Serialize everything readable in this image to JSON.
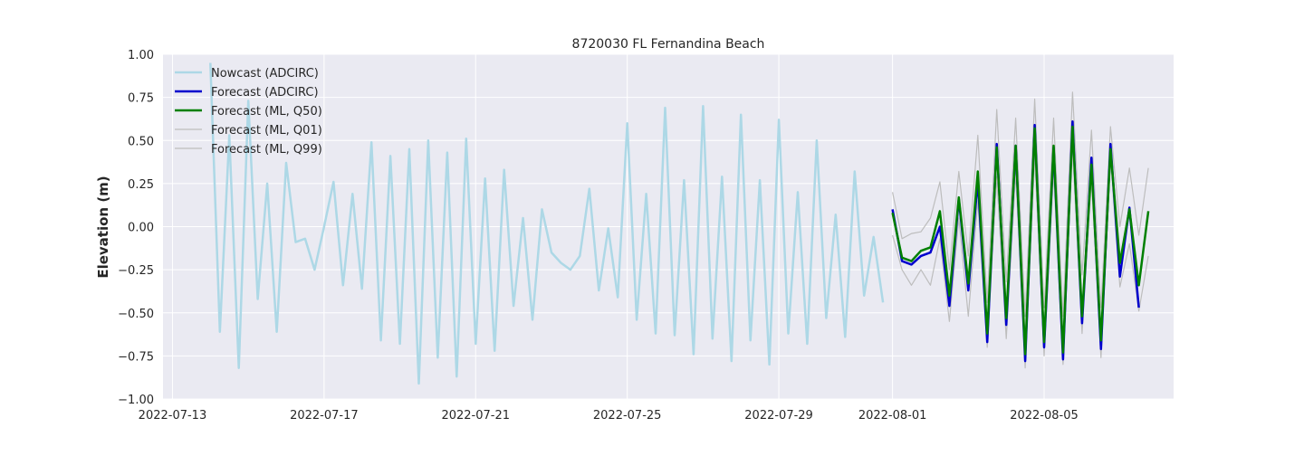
{
  "chart_data": {
    "type": "line",
    "title": "8720030 FL Fernandina Beach",
    "xlabel": "",
    "ylabel": "Elevation (m)",
    "ylim": [
      -1.0,
      1.0
    ],
    "xlim": [
      "2022-07-12T18:00",
      "2022-08-08T10:00"
    ],
    "x_ticks": [
      "2022-07-13",
      "2022-07-17",
      "2022-07-21",
      "2022-07-25",
      "2022-07-29",
      "2022-08-01",
      "2022-08-05"
    ],
    "y_ticks": [
      -1.0,
      -0.75,
      -0.5,
      -0.25,
      0.0,
      0.25,
      0.5,
      0.75,
      1.0
    ],
    "y_tick_labels": [
      "−1.00",
      "−0.75",
      "−0.50",
      "−0.25",
      "0.00",
      "0.25",
      "0.50",
      "0.75",
      "1.00"
    ],
    "grid": true,
    "legend_position": "top-left",
    "series": [
      {
        "name": "Nowcast (ADCIRC)",
        "color": "#add8e6",
        "x": [
          "2022-07-14T00:00",
          "2022-07-14T06:00",
          "2022-07-14T12:00",
          "2022-07-14T18:00",
          "2022-07-15T00:00",
          "2022-07-15T06:00",
          "2022-07-15T12:00",
          "2022-07-15T18:00",
          "2022-07-16T00:00",
          "2022-07-16T06:00",
          "2022-07-16T12:00",
          "2022-07-16T18:00",
          "2022-07-17T00:00",
          "2022-07-17T06:00",
          "2022-07-17T12:00",
          "2022-07-17T18:00",
          "2022-07-18T00:00",
          "2022-07-18T06:00",
          "2022-07-18T12:00",
          "2022-07-18T18:00",
          "2022-07-19T00:00",
          "2022-07-19T06:00",
          "2022-07-19T12:00",
          "2022-07-19T18:00",
          "2022-07-20T00:00",
          "2022-07-20T06:00",
          "2022-07-20T12:00",
          "2022-07-20T18:00",
          "2022-07-21T00:00",
          "2022-07-21T06:00",
          "2022-07-21T12:00",
          "2022-07-21T18:00",
          "2022-07-22T00:00",
          "2022-07-22T06:00",
          "2022-07-22T12:00",
          "2022-07-22T18:00",
          "2022-07-23T00:00",
          "2022-07-23T06:00",
          "2022-07-23T12:00",
          "2022-07-23T18:00",
          "2022-07-24T00:00",
          "2022-07-24T06:00",
          "2022-07-24T12:00",
          "2022-07-24T18:00",
          "2022-07-25T00:00",
          "2022-07-25T06:00",
          "2022-07-25T12:00",
          "2022-07-25T18:00",
          "2022-07-26T00:00",
          "2022-07-26T06:00",
          "2022-07-26T12:00",
          "2022-07-26T18:00",
          "2022-07-27T00:00",
          "2022-07-27T06:00",
          "2022-07-27T12:00",
          "2022-07-27T18:00",
          "2022-07-28T00:00",
          "2022-07-28T06:00",
          "2022-07-28T12:00",
          "2022-07-28T18:00",
          "2022-07-29T00:00",
          "2022-07-29T06:00",
          "2022-07-29T12:00",
          "2022-07-29T18:00",
          "2022-07-30T00:00",
          "2022-07-30T06:00",
          "2022-07-30T12:00",
          "2022-07-30T18:00",
          "2022-07-31T00:00",
          "2022-07-31T06:00",
          "2022-07-31T12:00",
          "2022-07-31T18:00"
        ],
        "values": [
          0.95,
          -0.61,
          0.53,
          -0.82,
          0.73,
          -0.42,
          0.25,
          -0.61,
          0.37,
          -0.09,
          -0.07,
          -0.25,
          0.0,
          0.26,
          -0.34,
          0.19,
          -0.36,
          0.49,
          -0.66,
          0.41,
          -0.68,
          0.45,
          -0.91,
          0.5,
          -0.76,
          0.43,
          -0.87,
          0.51,
          -0.68,
          0.28,
          -0.72,
          0.33,
          -0.46,
          0.05,
          -0.54,
          0.1,
          -0.15,
          -0.21,
          -0.25,
          -0.17,
          0.22,
          -0.37,
          -0.01,
          -0.41,
          0.6,
          -0.54,
          0.19,
          -0.62,
          0.69,
          -0.63,
          0.27,
          -0.74,
          0.7,
          -0.65,
          0.29,
          -0.78,
          0.65,
          -0.66,
          0.27,
          -0.8,
          0.62,
          -0.62,
          0.2,
          -0.68,
          0.5,
          -0.53,
          0.07,
          -0.64,
          0.32,
          -0.4,
          -0.06,
          -0.44
        ]
      },
      {
        "name": "Forecast (ADCIRC)",
        "color": "#0000cd",
        "x": [
          "2022-08-01T00:00",
          "2022-08-01T06:00",
          "2022-08-01T12:00",
          "2022-08-01T18:00",
          "2022-08-02T00:00",
          "2022-08-02T06:00",
          "2022-08-02T12:00",
          "2022-08-02T18:00",
          "2022-08-03T00:00",
          "2022-08-03T06:00",
          "2022-08-03T12:00",
          "2022-08-03T18:00",
          "2022-08-04T00:00",
          "2022-08-04T06:00",
          "2022-08-04T12:00",
          "2022-08-04T18:00",
          "2022-08-05T00:00",
          "2022-08-05T06:00",
          "2022-08-05T12:00",
          "2022-08-05T18:00",
          "2022-08-06T00:00",
          "2022-08-06T06:00",
          "2022-08-06T12:00",
          "2022-08-06T18:00",
          "2022-08-07T00:00",
          "2022-08-07T06:00",
          "2022-08-07T12:00",
          "2022-08-07T18:00"
        ],
        "values": [
          0.1,
          -0.2,
          -0.22,
          -0.17,
          -0.15,
          0.0,
          -0.46,
          0.16,
          -0.37,
          0.27,
          -0.67,
          0.48,
          -0.57,
          0.47,
          -0.78,
          0.59,
          -0.7,
          0.46,
          -0.77,
          0.61,
          -0.56,
          0.4,
          -0.71,
          0.48,
          -0.29,
          0.11,
          -0.47,
          null
        ]
      },
      {
        "name": "Forecast (ML, Q50)",
        "color": "#008000",
        "x": [
          "2022-08-01T00:00",
          "2022-08-01T06:00",
          "2022-08-01T12:00",
          "2022-08-01T18:00",
          "2022-08-02T00:00",
          "2022-08-02T06:00",
          "2022-08-02T12:00",
          "2022-08-02T18:00",
          "2022-08-03T00:00",
          "2022-08-03T06:00",
          "2022-08-03T12:00",
          "2022-08-03T18:00",
          "2022-08-04T00:00",
          "2022-08-04T06:00",
          "2022-08-04T12:00",
          "2022-08-04T18:00",
          "2022-08-05T00:00",
          "2022-08-05T06:00",
          "2022-08-05T12:00",
          "2022-08-05T18:00",
          "2022-08-06T00:00",
          "2022-08-06T06:00",
          "2022-08-06T12:00",
          "2022-08-06T18:00",
          "2022-08-07T00:00",
          "2022-08-07T06:00",
          "2022-08-07T12:00",
          "2022-08-07T18:00"
        ],
        "values": [
          0.08,
          -0.18,
          -0.2,
          -0.14,
          -0.12,
          0.09,
          -0.4,
          0.17,
          -0.33,
          0.32,
          -0.62,
          0.46,
          -0.53,
          0.47,
          -0.74,
          0.57,
          -0.67,
          0.47,
          -0.73,
          0.58,
          -0.52,
          0.36,
          -0.66,
          0.45,
          -0.21,
          0.1,
          -0.34,
          0.09
        ]
      },
      {
        "name": "Forecast (ML, Q01)",
        "color": "#bdbdbd",
        "x": [
          "2022-08-01T00:00",
          "2022-08-01T06:00",
          "2022-08-01T12:00",
          "2022-08-01T18:00",
          "2022-08-02T00:00",
          "2022-08-02T06:00",
          "2022-08-02T12:00",
          "2022-08-02T18:00",
          "2022-08-03T00:00",
          "2022-08-03T06:00",
          "2022-08-03T12:00",
          "2022-08-03T18:00",
          "2022-08-04T00:00",
          "2022-08-04T06:00",
          "2022-08-04T12:00",
          "2022-08-04T18:00",
          "2022-08-05T00:00",
          "2022-08-05T06:00",
          "2022-08-05T12:00",
          "2022-08-05T18:00",
          "2022-08-06T00:00",
          "2022-08-06T06:00",
          "2022-08-06T12:00",
          "2022-08-06T18:00",
          "2022-08-07T00:00",
          "2022-08-07T06:00",
          "2022-08-07T12:00",
          "2022-08-07T18:00"
        ],
        "values": [
          -0.05,
          -0.25,
          -0.34,
          -0.25,
          -0.34,
          -0.07,
          -0.55,
          0.05,
          -0.52,
          0.15,
          -0.7,
          0.29,
          -0.65,
          0.31,
          -0.82,
          0.41,
          -0.75,
          0.32,
          -0.8,
          0.45,
          -0.62,
          0.27,
          -0.76,
          0.4,
          -0.35,
          -0.1,
          -0.49,
          -0.17
        ]
      },
      {
        "name": "Forecast (ML, Q99)",
        "color": "#bdbdbd",
        "x": [
          "2022-08-01T00:00",
          "2022-08-01T06:00",
          "2022-08-01T12:00",
          "2022-08-01T18:00",
          "2022-08-02T00:00",
          "2022-08-02T06:00",
          "2022-08-02T12:00",
          "2022-08-02T18:00",
          "2022-08-03T00:00",
          "2022-08-03T06:00",
          "2022-08-03T12:00",
          "2022-08-03T18:00",
          "2022-08-04T00:00",
          "2022-08-04T06:00",
          "2022-08-04T12:00",
          "2022-08-04T18:00",
          "2022-08-05T00:00",
          "2022-08-05T06:00",
          "2022-08-05T12:00",
          "2022-08-05T18:00",
          "2022-08-06T00:00",
          "2022-08-06T06:00",
          "2022-08-06T12:00",
          "2022-08-06T18:00",
          "2022-08-07T00:00",
          "2022-08-07T06:00",
          "2022-08-07T12:00",
          "2022-08-07T18:00"
        ],
        "values": [
          0.2,
          -0.07,
          -0.04,
          -0.03,
          0.05,
          0.26,
          -0.25,
          0.32,
          -0.17,
          0.53,
          -0.44,
          0.68,
          -0.32,
          0.63,
          -0.52,
          0.74,
          -0.47,
          0.63,
          -0.52,
          0.78,
          -0.28,
          0.56,
          -0.47,
          0.58,
          0.0,
          0.34,
          -0.05,
          0.34
        ]
      }
    ]
  }
}
